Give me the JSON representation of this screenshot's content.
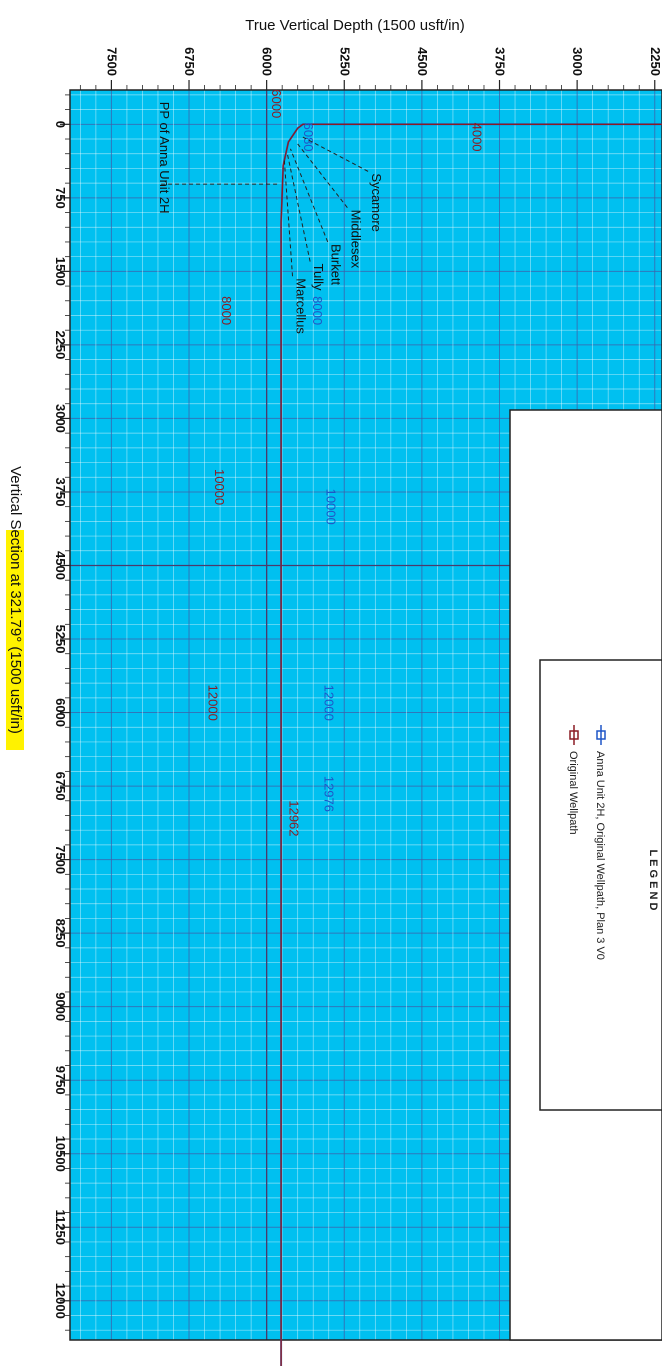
{
  "chart_data": {
    "type": "line",
    "title": "",
    "ylabel": "True Vertical Depth (1500 usft/in)",
    "xlabel": "Vertical Section at 321.79° (1500 usft/in)",
    "y_ticks": [
      "7500",
      "6750",
      "6000",
      "5250",
      "4500",
      "3750",
      "3000",
      "2250"
    ],
    "x_ticks": [
      "0",
      "750",
      "1500",
      "2250",
      "3000",
      "3750",
      "4500",
      "5250",
      "6000",
      "6750",
      "7500",
      "8250",
      "9000",
      "9750",
      "10500",
      "11250",
      "12000"
    ],
    "x_range": [
      -350,
      12400
    ],
    "tvd_range": [
      7900,
      2180
    ],
    "legend": {
      "title": "L E G E N D",
      "entries": [
        {
          "label": "Anna Unit 2H, Original Wellpath, Plan 3 V0",
          "color": "#1f56c7"
        },
        {
          "label": "Original Wellpath",
          "color": "#8b1c24"
        }
      ]
    },
    "series": [
      {
        "name": "Anna Unit 2H, Original Wellpath, Plan 3 V0",
        "color": "#1f56c7",
        "points": [
          [
            0,
            2180
          ],
          [
            0,
            5650
          ],
          [
            40,
            5700
          ],
          [
            180,
            5790
          ],
          [
            420,
            5840
          ],
          [
            1000,
            5860
          ],
          [
            4500,
            5860
          ],
          [
            8000,
            5860
          ],
          [
            10000,
            5860
          ],
          [
            12000,
            5860
          ],
          [
            12976,
            5860
          ]
        ]
      },
      {
        "name": "Original Wellpath",
        "color": "#8b1c24",
        "points": [
          [
            0,
            2180
          ],
          [
            0,
            5650
          ],
          [
            40,
            5700
          ],
          [
            180,
            5790
          ],
          [
            420,
            5840
          ],
          [
            1000,
            5860
          ],
          [
            4500,
            5860
          ],
          [
            8000,
            5860
          ],
          [
            10000,
            5860
          ],
          [
            12000,
            5860
          ],
          [
            12962,
            5860
          ]
        ]
      }
    ],
    "md_labels": [
      {
        "text": "4000",
        "color": "#8b1c24",
        "x": 130,
        "tvd": 4010
      },
      {
        "text": "6000",
        "color": "#8b1c24",
        "x": -210,
        "tvd": 5950
      },
      {
        "text": "6080",
        "color": "#1f56c7",
        "x": 130,
        "tvd": 5640
      },
      {
        "text": "8000",
        "color": "#8b1c24",
        "x": 1900,
        "tvd": 6430
      },
      {
        "text": "8000",
        "color": "#1f56c7",
        "x": 1900,
        "tvd": 5550
      },
      {
        "text": "10000",
        "color": "#8b1c24",
        "x": 3700,
        "tvd": 6500
      },
      {
        "text": "10000",
        "color": "#1f56c7",
        "x": 3900,
        "tvd": 5420
      },
      {
        "text": "12000",
        "color": "#8b1c24",
        "x": 5900,
        "tvd": 6560
      },
      {
        "text": "12000",
        "color": "#1f56c7",
        "x": 5900,
        "tvd": 5440
      },
      {
        "text": "12976",
        "color": "#1f56c7",
        "x": 6830,
        "tvd": 5440
      },
      {
        "text": "12962",
        "color": "#8b1c24",
        "x": 7080,
        "tvd": 5780
      }
    ],
    "formations": [
      {
        "name": "Sycamore",
        "x": 480,
        "tvd": 5020,
        "target_x": 130,
        "target_tvd": 5650
      },
      {
        "name": "Middlesex",
        "x": 850,
        "tvd": 5220,
        "target_x": 200,
        "target_tvd": 5700
      },
      {
        "name": "Burkett",
        "x": 1200,
        "tvd": 5410,
        "target_x": 250,
        "target_tvd": 5770
      },
      {
        "name": "Tully",
        "x": 1400,
        "tvd": 5580,
        "target_x": 300,
        "target_tvd": 5800
      },
      {
        "name": "Marcellus",
        "x": 1550,
        "tvd": 5750,
        "target_x": 350,
        "target_tvd": 5830
      }
    ],
    "pp_label": {
      "text": "PP of Anna Unit 2H",
      "x": -230,
      "tvd": 7030,
      "line_from_x": 610,
      "line_from_tvd": 7020,
      "line_to_x": 610,
      "line_to_tvd": 5870
    },
    "grid": true
  }
}
